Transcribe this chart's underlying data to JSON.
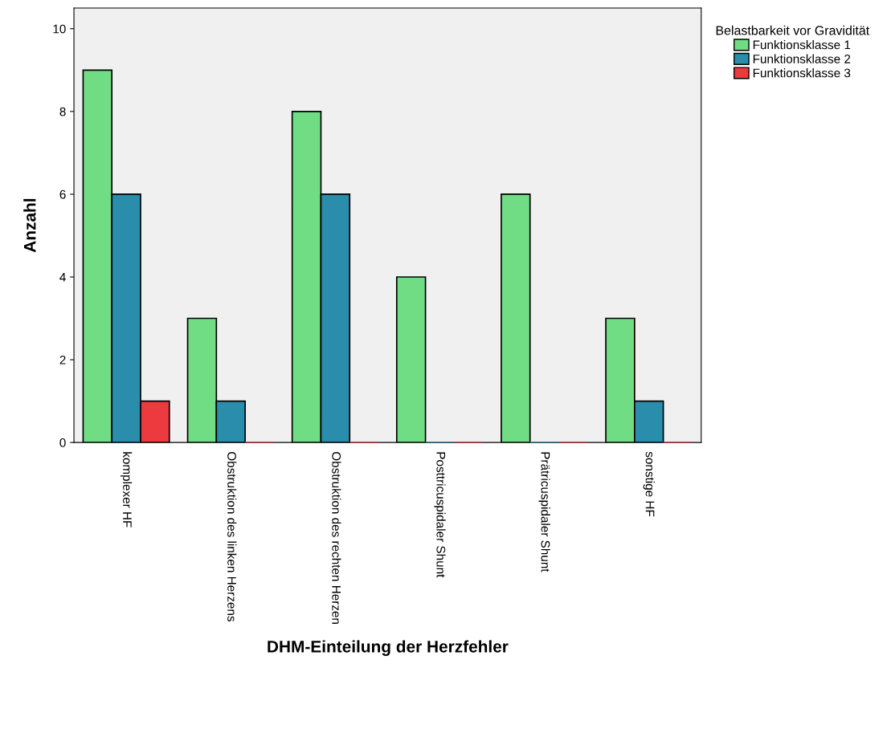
{
  "chart_data": {
    "type": "bar",
    "xlabel": "DHM-Einteilung der Herzfehler",
    "ylabel": "Anzahl",
    "legend_title": "Belastbarkeit vor Gravidität",
    "categories": [
      "komplexer HF",
      "Obstruktion des linken Herzens",
      "Obstruktion des rechten Herzen",
      "Posttricuspidaler Shunt",
      "Prätricuspidaler Shunt",
      "sonstige HF"
    ],
    "series": [
      {
        "name": "Funktionsklasse 1",
        "color": "#70dc84",
        "values": [
          9,
          3,
          8,
          4,
          6,
          3
        ]
      },
      {
        "name": "Funktionsklasse 2",
        "color": "#2a8dab",
        "values": [
          6,
          1,
          6,
          0,
          0,
          1
        ]
      },
      {
        "name": "Funktionsklasse 3",
        "color": "#ec3a3f",
        "values": [
          1,
          0,
          0,
          0,
          0,
          0
        ]
      }
    ],
    "ylim": [
      0,
      10.5
    ],
    "yticks": [
      0,
      2,
      4,
      6,
      8,
      10
    ],
    "grid": false,
    "legend": "right"
  }
}
